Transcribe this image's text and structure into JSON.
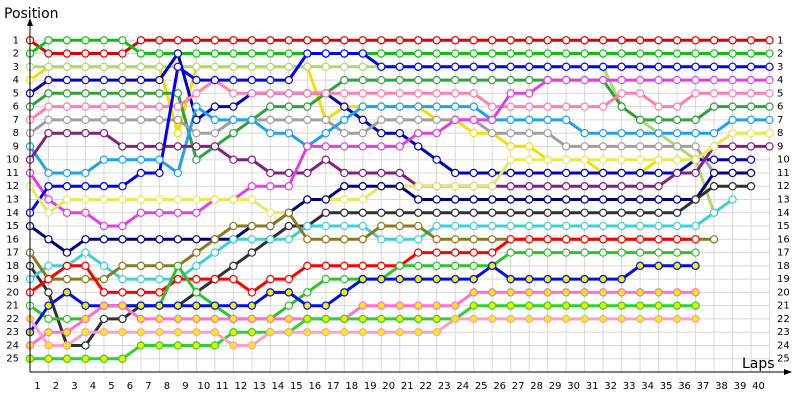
{
  "chart_data": {
    "type": "lapchart",
    "y_label": "Position",
    "x_label": "Laps",
    "x": [
      0,
      1,
      2,
      3,
      4,
      5,
      6,
      7,
      8,
      9,
      10,
      11,
      12,
      13,
      14,
      15,
      16,
      17,
      18,
      19,
      20,
      21,
      22,
      23,
      24,
      25,
      26,
      27,
      28,
      29,
      30,
      31,
      32,
      33,
      34,
      35,
      36,
      37,
      38,
      39,
      40
    ],
    "xlim": [
      0,
      41
    ],
    "ylim": [
      0,
      26
    ],
    "y_inverted": true,
    "grid": true,
    "xticks": [
      1,
      2,
      3,
      4,
      5,
      6,
      7,
      8,
      9,
      10,
      11,
      12,
      13,
      14,
      15,
      16,
      17,
      18,
      19,
      20,
      21,
      22,
      23,
      24,
      25,
      26,
      27,
      28,
      29,
      30,
      31,
      32,
      33,
      34,
      35,
      36,
      37,
      38,
      39,
      40
    ],
    "yticks": [
      1,
      2,
      3,
      4,
      5,
      6,
      7,
      8,
      9,
      10,
      11,
      12,
      13,
      14,
      15,
      16,
      17,
      18,
      19,
      20,
      21,
      22,
      23,
      24,
      25
    ],
    "series": [
      {
        "color": "#e00000",
        "marker_fill": "#ffffff",
        "values": [
          1,
          2,
          2,
          2,
          2,
          2,
          1,
          1,
          1,
          1,
          1,
          1,
          1,
          1,
          1,
          1,
          1,
          1,
          1,
          1,
          1,
          1,
          1,
          1,
          1,
          1,
          1,
          1,
          1,
          1,
          1,
          1,
          1,
          1,
          1,
          1,
          1,
          1,
          1,
          1,
          1
        ]
      },
      {
        "color": "#10c010",
        "marker_fill": "#ffffff",
        "values": [
          2,
          1,
          1,
          1,
          1,
          1,
          2,
          2,
          2,
          2,
          2,
          2,
          2,
          2,
          2,
          2,
          2,
          2,
          2,
          2,
          2,
          2,
          2,
          2,
          2,
          2,
          2,
          2,
          2,
          2,
          2,
          2,
          2,
          2,
          2,
          2,
          2,
          2,
          2,
          2,
          2
        ]
      },
      {
        "color": "#f0e000",
        "marker_fill": "#ffffff",
        "values": [
          4,
          3,
          3,
          3,
          3,
          3,
          3,
          3,
          8,
          3,
          3,
          3,
          3,
          3,
          3,
          3,
          7,
          6,
          6,
          6,
          6,
          6,
          7,
          7,
          8,
          8,
          9,
          9,
          10,
          10,
          10,
          11,
          11,
          11,
          10,
          10,
          10,
          9,
          8,
          8,
          8
        ]
      },
      {
        "color": "#b0d870",
        "marker_fill": "#ffffff",
        "values": [
          3,
          3,
          3,
          3,
          3,
          3,
          3,
          3,
          3,
          3,
          3,
          3,
          3,
          3,
          3,
          3,
          3,
          3,
          3,
          3,
          3,
          3,
          3,
          3,
          3,
          3,
          3,
          3,
          3,
          3,
          3,
          3,
          6,
          7,
          8,
          9,
          10,
          14,
          null,
          null,
          null
        ]
      },
      {
        "color": "#0000c0",
        "marker_fill": "#ffffff",
        "values": [
          5,
          4,
          4,
          4,
          4,
          4,
          4,
          4,
          2,
          7,
          6,
          6,
          5,
          5,
          5,
          5,
          5,
          6,
          7,
          8,
          8,
          9,
          10,
          11,
          11,
          11,
          11,
          11,
          11,
          11,
          11,
          11,
          11,
          11,
          11,
          11,
          10,
          10,
          10,
          10,
          null
        ]
      },
      {
        "color": "#30a040",
        "marker_fill": "#ffffff",
        "values": [
          6,
          5,
          5,
          5,
          5,
          5,
          5,
          5,
          5,
          10,
          9,
          8,
          7,
          6,
          6,
          6,
          5,
          4,
          4,
          4,
          4,
          4,
          4,
          4,
          4,
          4,
          4,
          4,
          4,
          4,
          4,
          4,
          6,
          7,
          7,
          7,
          7,
          6,
          6,
          6,
          6
        ]
      },
      {
        "color": "#ff80b0",
        "marker_fill": "#ffffff",
        "values": [
          7,
          6,
          6,
          6,
          6,
          6,
          6,
          6,
          6,
          5,
          4,
          5,
          5,
          5,
          5,
          5,
          5,
          5,
          5,
          5,
          5,
          5,
          5,
          5,
          5,
          6,
          6,
          6,
          6,
          6,
          6,
          6,
          5,
          5,
          6,
          6,
          5,
          5,
          5,
          5,
          5
        ]
      },
      {
        "color": "#a0a0a0",
        "marker_fill": "#ffffff",
        "values": [
          8,
          7,
          7,
          7,
          7,
          7,
          7,
          7,
          7,
          8,
          8,
          7,
          7,
          7,
          7,
          7,
          7,
          8,
          8,
          7,
          7,
          7,
          7,
          7,
          7,
          8,
          8,
          8,
          8,
          9,
          9,
          9,
          9,
          9,
          9,
          9,
          9,
          11,
          11,
          11,
          null
        ]
      },
      {
        "color": "#20a0f0",
        "marker_fill": "#ffffff",
        "values": [
          9,
          11,
          11,
          11,
          10,
          10,
          10,
          10,
          11,
          6,
          7,
          7,
          7,
          8,
          8,
          9,
          8,
          7,
          6,
          6,
          6,
          6,
          6,
          6,
          6,
          7,
          7,
          7,
          7,
          7,
          8,
          8,
          8,
          8,
          8,
          8,
          8,
          8,
          7,
          7,
          7
        ]
      },
      {
        "color": "#802080",
        "marker_fill": "#ffffff",
        "values": [
          10,
          8,
          8,
          8,
          8,
          9,
          9,
          9,
          9,
          9,
          9,
          10,
          10,
          11,
          11,
          11,
          10,
          11,
          11,
          11,
          11,
          12,
          12,
          12,
          12,
          12,
          12,
          12,
          12,
          12,
          12,
          12,
          12,
          12,
          12,
          11,
          11,
          9,
          9,
          9,
          9
        ]
      },
      {
        "color": "#e040e0",
        "marker_fill": "#ffffff",
        "values": [
          11,
          13,
          14,
          14,
          15,
          15,
          14,
          14,
          14,
          14,
          13,
          13,
          12,
          12,
          12,
          9,
          9,
          9,
          9,
          9,
          9,
          8,
          8,
          7,
          7,
          7,
          5,
          5,
          4,
          4,
          4,
          4,
          4,
          4,
          4,
          4,
          4,
          4,
          4,
          4,
          4
        ]
      },
      {
        "color": "#0000ff",
        "marker_fill": "#ffffff",
        "values": [
          14,
          12,
          12,
          12,
          12,
          12,
          11,
          11,
          3,
          4,
          4,
          4,
          4,
          4,
          4,
          2,
          2,
          2,
          2,
          3,
          3,
          3,
          3,
          3,
          3,
          3,
          3,
          3,
          3,
          3,
          3,
          3,
          3,
          3,
          3,
          3,
          3,
          3,
          3,
          3,
          3
        ]
      },
      {
        "color": "#e8e860",
        "marker_fill": "#ffffff",
        "values": [
          12,
          14,
          13,
          13,
          13,
          13,
          13,
          13,
          13,
          13,
          13,
          13,
          13,
          14,
          14,
          13,
          13,
          13,
          13,
          12,
          12,
          12,
          12,
          12,
          12,
          12,
          10,
          10,
          10,
          10,
          10,
          10,
          10,
          10,
          10,
          10,
          10,
          9,
          8,
          8,
          8
        ]
      },
      {
        "color": "#000080",
        "marker_fill": "#ffffff",
        "values": [
          15,
          16,
          17,
          16,
          16,
          16,
          16,
          16,
          16,
          16,
          16,
          16,
          15,
          15,
          14,
          13,
          13,
          12,
          12,
          12,
          12,
          13,
          13,
          13,
          13,
          13,
          13,
          13,
          13,
          13,
          13,
          13,
          13,
          13,
          13,
          13,
          13,
          11,
          11,
          11,
          null
        ]
      },
      {
        "color": "#303030",
        "marker_fill": "#ffffff",
        "values": [
          18,
          20,
          24,
          24,
          22,
          22,
          21,
          21,
          21,
          20,
          19,
          18,
          17,
          16,
          15,
          15,
          14,
          14,
          14,
          14,
          14,
          14,
          14,
          14,
          14,
          14,
          14,
          14,
          14,
          14,
          14,
          14,
          14,
          14,
          14,
          14,
          13,
          12,
          12,
          12,
          null
        ]
      },
      {
        "color": "#40d0d0",
        "marker_fill": "#ffffff",
        "values": [
          19,
          18,
          18,
          17,
          18,
          19,
          19,
          19,
          19,
          18,
          17,
          16,
          16,
          16,
          16,
          15,
          15,
          15,
          15,
          16,
          16,
          16,
          15,
          15,
          15,
          15,
          15,
          15,
          15,
          15,
          15,
          15,
          15,
          15,
          15,
          15,
          15,
          14,
          13,
          null,
          null
        ]
      },
      {
        "color": "#8a7a20",
        "marker_fill": "#ffffff",
        "values": [
          17,
          19,
          19,
          19,
          19,
          18,
          18,
          18,
          18,
          17,
          16,
          15,
          15,
          15,
          14,
          16,
          16,
          16,
          16,
          15,
          15,
          15,
          16,
          16,
          16,
          16,
          16,
          16,
          16,
          16,
          16,
          16,
          16,
          16,
          16,
          16,
          16,
          16,
          null,
          null,
          null
        ]
      },
      {
        "color": "#ff0000",
        "marker_fill": "#ffffff",
        "values": [
          20,
          19,
          18,
          18,
          20,
          20,
          20,
          20,
          19,
          19,
          19,
          19,
          20,
          19,
          19,
          18,
          18,
          18,
          18,
          18,
          18,
          17,
          17,
          17,
          17,
          17,
          16,
          16,
          16,
          16,
          16,
          16,
          16,
          16,
          16,
          16,
          16,
          null,
          null,
          null,
          null
        ]
      },
      {
        "color": "#30c030",
        "marker_fill": "#ffffff",
        "values": [
          21,
          22,
          22,
          22,
          21,
          21,
          21,
          21,
          18,
          20,
          21,
          22,
          22,
          22,
          21,
          20,
          19,
          19,
          19,
          19,
          18,
          18,
          18,
          18,
          18,
          18,
          17,
          17,
          17,
          17,
          17,
          17,
          17,
          17,
          17,
          17,
          17,
          null,
          null,
          null,
          null
        ]
      },
      {
        "color": "#0010e0",
        "marker_fill": "#f0f000",
        "values": [
          23,
          21,
          20,
          21,
          21,
          21,
          21,
          21,
          21,
          21,
          21,
          21,
          21,
          20,
          20,
          21,
          21,
          20,
          19,
          19,
          19,
          19,
          19,
          19,
          19,
          18,
          19,
          19,
          19,
          19,
          19,
          19,
          19,
          18,
          18,
          18,
          18,
          null,
          null,
          null,
          null
        ]
      },
      {
        "color": "#ff70d0",
        "marker_fill": "#f0f000",
        "values": [
          24,
          23,
          23,
          22,
          21,
          21,
          22,
          22,
          22,
          22,
          22,
          22,
          22,
          22,
          22,
          22,
          22,
          22,
          21,
          21,
          21,
          21,
          21,
          21,
          20,
          20,
          20,
          20,
          20,
          20,
          20,
          20,
          20,
          20,
          20,
          20,
          20,
          null,
          null,
          null,
          null
        ]
      },
      {
        "color": "#30d030",
        "marker_fill": "#f0f000",
        "values": [
          25,
          25,
          25,
          25,
          25,
          25,
          24,
          24,
          24,
          24,
          24,
          23,
          23,
          23,
          23,
          22,
          22,
          22,
          22,
          22,
          22,
          22,
          22,
          22,
          21,
          21,
          21,
          21,
          21,
          21,
          21,
          21,
          21,
          21,
          21,
          21,
          21,
          null,
          null,
          null,
          null
        ]
      },
      {
        "color": "#ff9ec8",
        "marker_fill": "#f0f000",
        "values": [
          22,
          24,
          24,
          23,
          23,
          23,
          23,
          23,
          23,
          23,
          23,
          24,
          24,
          23,
          23,
          23,
          23,
          23,
          23,
          23,
          23,
          23,
          23,
          22,
          22,
          22,
          22,
          22,
          22,
          22,
          22,
          22,
          22,
          22,
          22,
          22,
          22,
          null,
          null,
          null,
          null
        ]
      }
    ]
  }
}
